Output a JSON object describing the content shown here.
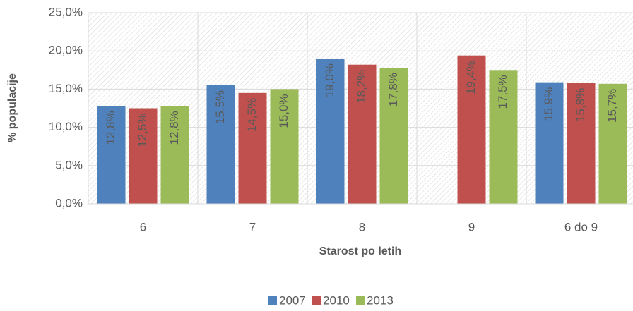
{
  "chart_data": {
    "type": "bar",
    "categories": [
      "6",
      "7",
      "8",
      "9",
      "6 do 9"
    ],
    "series": [
      {
        "name": "2007",
        "color": "#4f81bd",
        "values": [
          12.8,
          15.5,
          19.0,
          null,
          15.9
        ],
        "value_labels": [
          "12,8%",
          "15,5%",
          "19,0%",
          null,
          "15,9%"
        ]
      },
      {
        "name": "2010",
        "color": "#c0504d",
        "values": [
          12.5,
          14.5,
          18.2,
          19.4,
          15.8
        ],
        "value_labels": [
          "12,5%",
          "14,5%",
          "18,2%",
          "19,4%",
          "15,8%"
        ]
      },
      {
        "name": "2013",
        "color": "#9bbb59",
        "values": [
          12.8,
          15.0,
          17.8,
          17.5,
          15.7
        ],
        "value_labels": [
          "12,8%",
          "15,0%",
          "17,8%",
          "17,5%",
          "15,7%"
        ]
      }
    ],
    "ylim": [
      0,
      25
    ],
    "yticks": [
      {
        "value": 0,
        "label": "0,0%"
      },
      {
        "value": 5,
        "label": "5,0%"
      },
      {
        "value": 10,
        "label": "10,0%"
      },
      {
        "value": 15,
        "label": "15,0%"
      },
      {
        "value": 20,
        "label": "20,0%"
      },
      {
        "value": 25,
        "label": "25,0%"
      }
    ],
    "xlabel": "Starost po letih",
    "ylabel": "% populacije",
    "grid": true,
    "legend": "bottom"
  }
}
